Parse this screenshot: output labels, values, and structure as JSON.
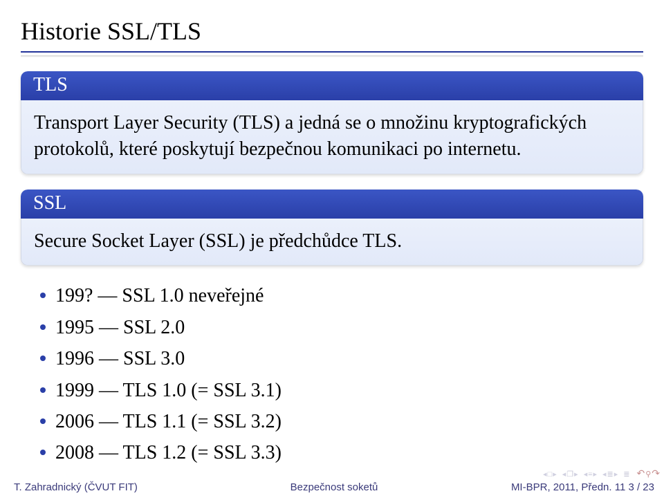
{
  "title": "Historie SSL/TLS",
  "blocks": {
    "tls": {
      "header": "TLS",
      "body": "Transport Layer Security (TLS) a jedná se o množinu kryptografických protokolů, které poskytují bezpečnou komunikaci po internetu."
    },
    "ssl": {
      "header": "SSL",
      "body": "Secure Socket Layer (SSL) je předchůdce TLS."
    }
  },
  "bullets": [
    "199? — SSL 1.0 neveřejné",
    "1995 — SSL 2.0",
    "1996 — SSL 3.0",
    "1999 — TLS 1.0 (= SSL 3.1)",
    "2006 — TLS 1.1 (= SSL 3.2)",
    "2008 — TLS 1.2 (= SSL 3.3)"
  ],
  "footer": {
    "left": "T. Zahradnický (ČVUT FIT)",
    "center": "Bezpečnost soketů",
    "right": "MI-BPR, 2011, Předn. 11    3 / 23"
  },
  "colors": {
    "accent": "#23349a",
    "block_header_from": "#3b56c5",
    "block_header_to": "#2a3fa8",
    "block_body_from": "#ebf0fb",
    "block_body_to": "#e2e9f9",
    "footer_text": "#3a3a7a",
    "nav_inactive": "#c8c8d8",
    "nav_reload": "#c89090"
  }
}
